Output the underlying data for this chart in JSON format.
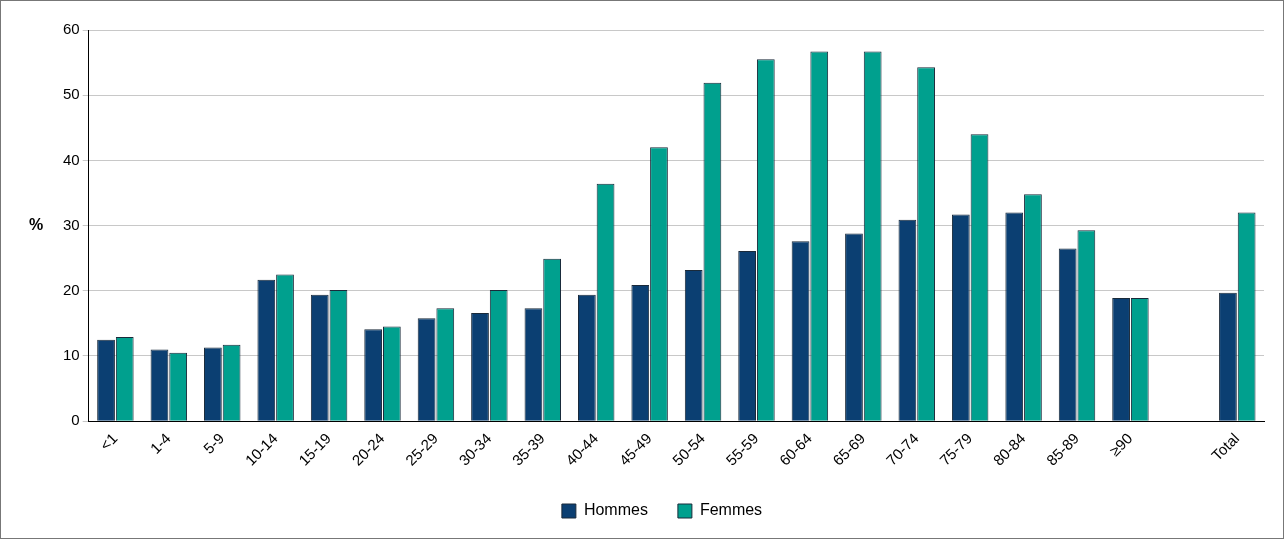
{
  "chart_data": {
    "type": "bar",
    "ylabel": "%",
    "categories": [
      "<1",
      "1-4",
      "5-9",
      "10-14",
      "15-19",
      "20-24",
      "25-29",
      "30-34",
      "35-39",
      "40-44",
      "45-49",
      "50-54",
      "55-59",
      "60-64",
      "65-69",
      "70-74",
      "75-79",
      "80-84",
      "85-89",
      "≥90",
      null,
      "Total"
    ],
    "series": [
      {
        "name": "Hommes",
        "color": "#0b3f72",
        "values": [
          12.5,
          11,
          11.3,
          21.7,
          19.4,
          14.1,
          15.8,
          16.6,
          17.3,
          19.4,
          20.9,
          23.2,
          26.1,
          27.6,
          28.8,
          30.9,
          31.7,
          32,
          26.5,
          18.9,
          null,
          19.7
        ]
      },
      {
        "name": "Femmes",
        "color": "#00a08e",
        "values": [
          12.9,
          10.5,
          11.7,
          22.5,
          20.1,
          14.5,
          17.3,
          20.1,
          24.9,
          36.4,
          42,
          51.9,
          55.5,
          56.7,
          56.7,
          54.3,
          44,
          34.8,
          29.3,
          18.9,
          null,
          32
        ]
      }
    ],
    "ylim": [
      0,
      60
    ],
    "yticks": [
      0,
      10,
      20,
      30,
      40,
      50,
      60
    ],
    "grid": "y",
    "legend": "bottom"
  }
}
